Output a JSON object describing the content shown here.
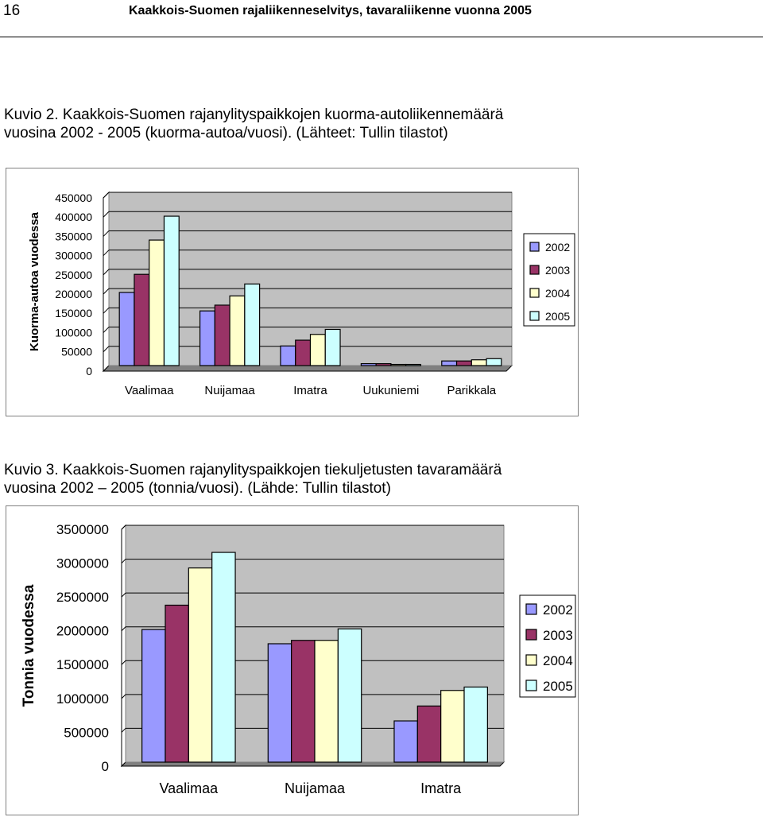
{
  "header": {
    "page_number": "16",
    "title": "Kaakkois-Suomen rajaliikenneselvitys, tavaraliikenne vuonna 2005"
  },
  "figures": [
    {
      "caption_lines": [
        "Kuvio  2.  Kaakkois-Suomen  rajanylityspaikkojen  kuorma-autoliikennemäärä",
        "vuosina 2002 - 2005 (kuorma-autoa/vuosi).  (Lähteet: Tullin tilastot)"
      ]
    },
    {
      "caption_lines": [
        "Kuvio 3.  Kaakkois-Suomen  rajanylityspaikkojen  tiekuljetusten  tavaramäärä",
        "vuosina 2002 – 2005 (tonnia/vuosi). (Lähde: Tullin tilastot)"
      ]
    }
  ],
  "colors": {
    "2002": "#9999ff",
    "2003": "#993366",
    "2004": "#ffffcc",
    "2005": "#ccffff",
    "plot_background": "#c0c0c0",
    "gridline": "#000000"
  },
  "chart_data": [
    {
      "type": "bar",
      "categories": [
        "Vaalimaa",
        "Nuijamaa",
        "Imatra",
        "Uukuniemi",
        "Parikkala"
      ],
      "series": [
        {
          "name": "2002",
          "values": [
            190000,
            142000,
            51000,
            5000,
            12000
          ]
        },
        {
          "name": "2003",
          "values": [
            237000,
            157000,
            66000,
            5000,
            12000
          ]
        },
        {
          "name": "2004",
          "values": [
            326000,
            181000,
            81000,
            3000,
            15000
          ]
        },
        {
          "name": "2005",
          "values": [
            388000,
            212000,
            94000,
            3000,
            18000
          ]
        }
      ],
      "xlabel": "",
      "ylabel": "Kuorma-autoa vuodessa",
      "ylim": [
        0,
        450000
      ],
      "yticks": [
        "0",
        "50000",
        "100000",
        "150000",
        "200000",
        "250000",
        "300000",
        "350000",
        "400000",
        "450000"
      ],
      "grid": true,
      "legend_position": "right"
    },
    {
      "type": "bar",
      "categories": [
        "Vaalimaa",
        "Nuijamaa",
        "Imatra"
      ],
      "series": [
        {
          "name": "2002",
          "values": [
            1960000,
            1750000,
            610000
          ]
        },
        {
          "name": "2003",
          "values": [
            2320000,
            1800000,
            830000
          ]
        },
        {
          "name": "2004",
          "values": [
            2870000,
            1800000,
            1060000
          ]
        },
        {
          "name": "2005",
          "values": [
            3100000,
            1970000,
            1110000
          ]
        }
      ],
      "xlabel": "",
      "ylabel": "Tonnia vuodessa",
      "ylim": [
        0,
        3500000
      ],
      "yticks": [
        "0",
        "500000",
        "1000000",
        "1500000",
        "2000000",
        "2500000",
        "3000000",
        "3500000"
      ],
      "grid": true,
      "legend_position": "right"
    }
  ]
}
